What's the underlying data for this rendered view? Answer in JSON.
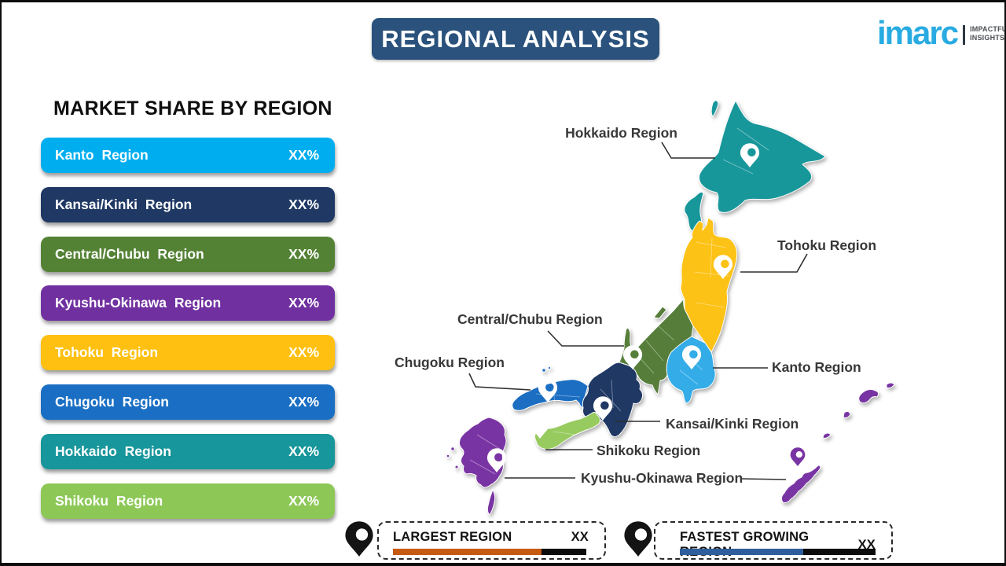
{
  "title": "REGIONAL ANALYSIS",
  "logo": {
    "brand": "imarc",
    "brand_color": "#29ABE2",
    "tagline_line1": "IMPACTFUL",
    "tagline_line2": "INSIGHTS"
  },
  "market_share": {
    "heading": "MARKET SHARE BY REGION",
    "items": [
      {
        "label": "Kanto Region",
        "value": "XX%",
        "color": "#00AEEF"
      },
      {
        "label": "Kansai/Kinki Region",
        "value": "XX%",
        "color": "#1F3864"
      },
      {
        "label": "Central/Chubu Region",
        "value": "XX%",
        "color": "#548235"
      },
      {
        "label": "Kyushu-Okinawa Region",
        "value": "XX%",
        "color": "#7030A0"
      },
      {
        "label": "Tohoku Region",
        "value": "XX%",
        "color": "#FFC011"
      },
      {
        "label": "Chugoku Region",
        "value": "XX%",
        "color": "#1A6FC4"
      },
      {
        "label": "Hokkaido Region",
        "value": "XX%",
        "color": "#17969B"
      },
      {
        "label": "Shikoku Region",
        "value": "XX%",
        "color": "#8DC857"
      }
    ]
  },
  "map": {
    "labels": {
      "hokkaido": "Hokkaido Region",
      "tohoku": "Tohoku Region",
      "chubu": "Central/Chubu Region",
      "chugoku": "Chugoku Region",
      "kanto": "Kanto Region",
      "kansai": "Kansai/Kinki Region",
      "shikoku": "Shikoku Region",
      "kyushu_okinawa": "Kyushu-Okinawa Region"
    },
    "colors": {
      "hokkaido": "#18979B",
      "tohoku": "#FDC216",
      "kanto": "#33ACE8",
      "chubu": "#567E3A",
      "kansai": "#1F3864",
      "chugoku": "#1B6EC2",
      "shikoku": "#97CB5F",
      "kyushu_okinawa": "#7934A4"
    }
  },
  "legend": {
    "largest": {
      "label": "LARGEST REGION",
      "value": "XX",
      "bar_color": "#C55A11"
    },
    "fastest": {
      "label": "FASTEST GROWING REGION",
      "value": "XX",
      "bar_color": "#2E5E9C"
    }
  }
}
